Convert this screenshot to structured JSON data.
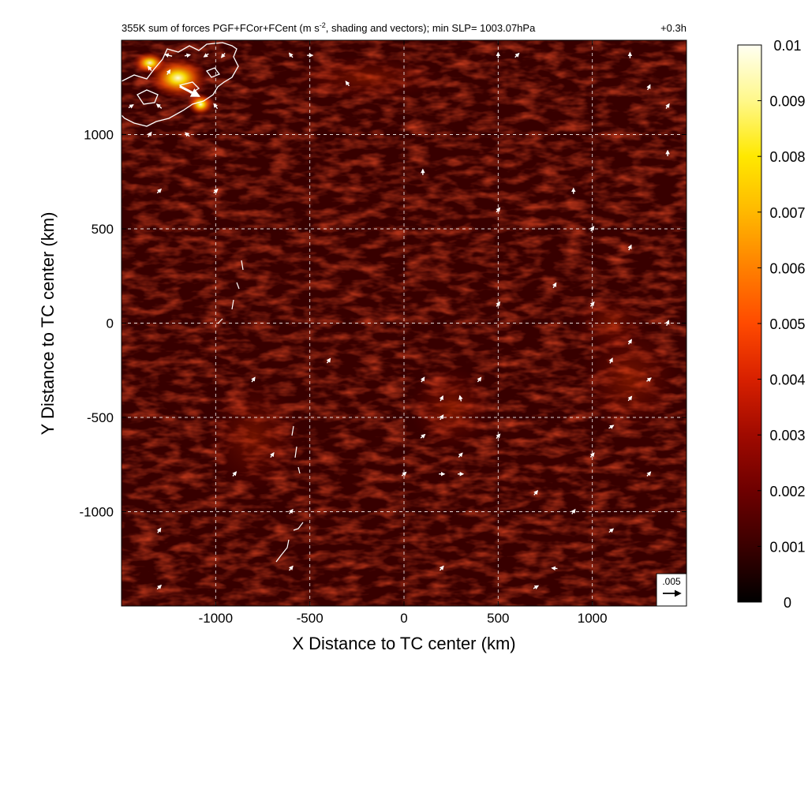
{
  "chart_data": {
    "type": "heatmap",
    "title": "355K sum of forces PGF+FCor+FCent (m s",
    "title_superscript": "-2",
    "title_rest": ", shading and vectors); min SLP= 1003.07hPa",
    "time_label": "+0.3h",
    "xlabel": "X Distance to TC center (km)",
    "ylabel": "Y Distance to TC center (km)",
    "xlim": [
      -1500,
      1500
    ],
    "ylim": [
      -1500,
      1500
    ],
    "x_ticks": [
      -1000,
      -500,
      0,
      500,
      1000
    ],
    "y_ticks": [
      -1000,
      -500,
      0,
      500,
      1000
    ],
    "x_tick_labels": [
      "-1000",
      "-500",
      "0",
      "500",
      "1000"
    ],
    "y_tick_labels": [
      "-1000",
      "-500",
      "0",
      "500",
      "1000"
    ],
    "grid": "dashed",
    "colorbar": {
      "min": 0,
      "max": 0.01,
      "ticks": [
        0,
        0.001,
        0.002,
        0.003,
        0.004,
        0.005,
        0.006,
        0.007,
        0.008,
        0.009,
        0.01
      ],
      "tick_labels": [
        "0",
        "0.001",
        "0.002",
        "0.003",
        "0.004",
        "0.005",
        "0.006",
        "0.007",
        "0.008",
        "0.009",
        "0.01"
      ],
      "colors": [
        "#000000",
        "#3a0000",
        "#6e0000",
        "#a00a00",
        "#d82000",
        "#ff4a00",
        "#ff8000",
        "#ffb800",
        "#ffe800",
        "#fff88a",
        "#fffff2"
      ]
    },
    "shading": {
      "background": 0.0018,
      "hotspots": [
        {
          "x": -1200,
          "y": 1300,
          "value": 0.0085,
          "sx": 160,
          "sy": 110
        },
        {
          "x": -1080,
          "y": 1160,
          "value": 0.009,
          "sx": 70,
          "sy": 60
        },
        {
          "x": -1350,
          "y": 1380,
          "value": 0.006,
          "sx": 90,
          "sy": 60
        },
        {
          "x": 250,
          "y": -450,
          "value": 0.004,
          "sx": 220,
          "sy": 220
        },
        {
          "x": 1200,
          "y": -300,
          "value": 0.0035,
          "sx": 260,
          "sy": 300
        },
        {
          "x": 1100,
          "y": 0,
          "value": 0.003,
          "sx": 200,
          "sy": 150
        },
        {
          "x": -200,
          "y": 1300,
          "value": 0.003,
          "sx": 400,
          "sy": 120
        },
        {
          "x": -800,
          "y": -600,
          "value": 0.0025,
          "sx": 250,
          "sy": 300
        }
      ]
    },
    "reference_vector": {
      "label": ".005",
      "magnitude": 0.005,
      "u": 1,
      "v": 0
    },
    "vectors": [
      {
        "x": -1140,
        "y": 1230,
        "u": 0.0055,
        "v": -0.0028
      },
      {
        "x": -1250,
        "y": 1420,
        "u": -0.002,
        "v": 0.0005
      },
      {
        "x": -1150,
        "y": 1420,
        "u": 0.0015,
        "v": 0.0003
      },
      {
        "x": -1050,
        "y": 1420,
        "u": -0.0012,
        "v": -0.0008
      },
      {
        "x": -960,
        "y": 1420,
        "u": -0.001,
        "v": -0.0012
      },
      {
        "x": -1350,
        "y": 1350,
        "u": -0.0008,
        "v": 0.001
      },
      {
        "x": -1250,
        "y": 1330,
        "u": 0.0008,
        "v": 0.0012
      },
      {
        "x": -1300,
        "y": 1150,
        "u": -0.0014,
        "v": 0.0012
      },
      {
        "x": -1000,
        "y": 1150,
        "u": -0.001,
        "v": 0.0014
      },
      {
        "x": -1450,
        "y": 1150,
        "u": 0.0006,
        "v": 0.0004
      },
      {
        "x": -1350,
        "y": 1000,
        "u": 0.0005,
        "v": 0.0007
      },
      {
        "x": -1150,
        "y": 1000,
        "u": -0.0006,
        "v": 0.0005
      },
      {
        "x": -600,
        "y": 1420,
        "u": -0.0007,
        "v": 0.0009
      },
      {
        "x": -500,
        "y": 1420,
        "u": 0.0009,
        "v": 0
      },
      {
        "x": -300,
        "y": 1270,
        "u": -0.0006,
        "v": 0.0008
      },
      {
        "x": 500,
        "y": 1420,
        "u": 0,
        "v": 0.0009
      },
      {
        "x": 600,
        "y": 1420,
        "u": 0.0006,
        "v": 0.0006
      },
      {
        "x": 1200,
        "y": 1420,
        "u": 0,
        "v": 0.0009
      },
      {
        "x": 1300,
        "y": 1250,
        "u": 0.0004,
        "v": 0.0008
      },
      {
        "x": 1400,
        "y": 1150,
        "u": 0.0004,
        "v": 0.0006
      },
      {
        "x": 1400,
        "y": 900,
        "u": 0,
        "v": 0.0007
      },
      {
        "x": -1300,
        "y": 700,
        "u": 0.0006,
        "v": 0.0006
      },
      {
        "x": -1000,
        "y": 700,
        "u": 0.0005,
        "v": 0.0005
      },
      {
        "x": 100,
        "y": 800,
        "u": 0,
        "v": 0.0006
      },
      {
        "x": 500,
        "y": 600,
        "u": 0.0004,
        "v": 0.0005
      },
      {
        "x": 900,
        "y": 700,
        "u": 0,
        "v": 0.0006
      },
      {
        "x": 1000,
        "y": 500,
        "u": 0.0004,
        "v": 0.0006
      },
      {
        "x": 1200,
        "y": 400,
        "u": 0.0003,
        "v": 0.0006
      },
      {
        "x": 800,
        "y": 200,
        "u": 0.0004,
        "v": 0.0007
      },
      {
        "x": 500,
        "y": 100,
        "u": 0.0005,
        "v": 0.0007
      },
      {
        "x": 1000,
        "y": 100,
        "u": 0.0005,
        "v": 0.0006
      },
      {
        "x": 1400,
        "y": 0,
        "u": 0.0006,
        "v": 0.0014
      },
      {
        "x": 1200,
        "y": -100,
        "u": 0.0006,
        "v": 0.0009
      },
      {
        "x": 1100,
        "y": -200,
        "u": 0.0004,
        "v": 0.0008
      },
      {
        "x": 1300,
        "y": -300,
        "u": 0.0009,
        "v": 0.0007
      },
      {
        "x": 1200,
        "y": -400,
        "u": 0.0007,
        "v": 0.0009
      },
      {
        "x": 1100,
        "y": -550,
        "u": 0.0008,
        "v": 0.0005
      },
      {
        "x": 100,
        "y": -300,
        "u": 0.0005,
        "v": 0.0008
      },
      {
        "x": 200,
        "y": -400,
        "u": 0.0005,
        "v": 0.001
      },
      {
        "x": 300,
        "y": -400,
        "u": -0.0003,
        "v": 0.0012
      },
      {
        "x": 400,
        "y": -300,
        "u": 0.0006,
        "v": 0.0008
      },
      {
        "x": 200,
        "y": -500,
        "u": 0.0006,
        "v": 0.0009
      },
      {
        "x": 100,
        "y": -600,
        "u": 0.0007,
        "v": 0.0006
      },
      {
        "x": 500,
        "y": -600,
        "u": 0.0006,
        "v": 0.0007
      },
      {
        "x": 300,
        "y": -700,
        "u": 0.0007,
        "v": 0.0008
      },
      {
        "x": 0,
        "y": -800,
        "u": 0.0007,
        "v": 0.0006
      },
      {
        "x": 200,
        "y": -800,
        "u": 0.0008,
        "v": 0
      },
      {
        "x": 300,
        "y": -800,
        "u": 0.0008,
        "v": 0
      },
      {
        "x": -400,
        "y": -200,
        "u": 0.0005,
        "v": 0.0007
      },
      {
        "x": -800,
        "y": -300,
        "u": 0.0004,
        "v": 0.0006
      },
      {
        "x": -700,
        "y": -700,
        "u": 0.0005,
        "v": 0.0007
      },
      {
        "x": -900,
        "y": -800,
        "u": 0.0005,
        "v": 0.0006
      },
      {
        "x": -1300,
        "y": -1100,
        "u": 0.0004,
        "v": 0.0006
      },
      {
        "x": -600,
        "y": -1000,
        "u": 0.0004,
        "v": 0.0005
      },
      {
        "x": 700,
        "y": -900,
        "u": 0.0005,
        "v": 0.0006
      },
      {
        "x": 900,
        "y": -1000,
        "u": 0.0005,
        "v": 0.0007
      },
      {
        "x": 1100,
        "y": -1100,
        "u": 0.0006,
        "v": 0.0005
      },
      {
        "x": 800,
        "y": -1300,
        "u": -0.0009,
        "v": 0.0001
      },
      {
        "x": 700,
        "y": -1400,
        "u": 0.0007,
        "v": 0.0004
      },
      {
        "x": 1300,
        "y": -800,
        "u": 0.0006,
        "v": 0.0007
      },
      {
        "x": 1000,
        "y": -700,
        "u": 0.0005,
        "v": 0.0006
      },
      {
        "x": -1300,
        "y": -1400,
        "u": 0.0005,
        "v": 0.0005
      },
      {
        "x": -600,
        "y": -1300,
        "u": 0.0005,
        "v": 0.0006
      },
      {
        "x": 200,
        "y": -1300,
        "u": 0.0005,
        "v": 0.0006
      }
    ]
  }
}
